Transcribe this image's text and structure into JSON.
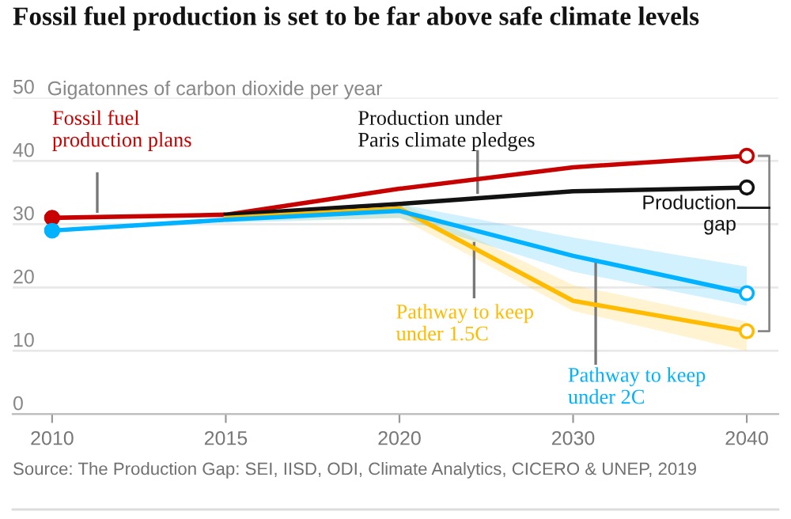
{
  "chart_data": {
    "type": "line",
    "title": "Fossil fuel production is set to be far above safe climate levels",
    "ylabel": "Gigatonnes of carbon dioxide per year",
    "categories": [
      "2010",
      "2015",
      "2020",
      "2030",
      "2040"
    ],
    "series": [
      {
        "name": "Fossil fuel\nproduction plans",
        "color": "#c70000",
        "values": [
          31,
          31.5,
          35.6,
          39,
          40.8
        ]
      },
      {
        "name": "Production under\nParis climate pledges",
        "color": "#121212",
        "values": [
          null,
          31.5,
          33.2,
          35.2,
          35.8
        ]
      },
      {
        "name": "Pathway to keep\nunder 1.5C",
        "color": "#ffbb00",
        "values": [
          null,
          31,
          32.5,
          17.9,
          13.1
        ],
        "lower": [
          null,
          30.5,
          31,
          16.3,
          10
        ],
        "upper": [
          null,
          31.5,
          33.5,
          20.4,
          14.6
        ]
      },
      {
        "name": "Pathway to keep\nunder 2C",
        "color": "#00b2ff",
        "values": [
          29,
          30.7,
          32.1,
          25,
          19.1
        ],
        "lower": [
          null,
          30.2,
          31,
          22.5,
          17.1
        ],
        "upper": [
          null,
          31.2,
          33.2,
          27.9,
          23.3
        ]
      }
    ],
    "ylim": [
      0,
      50
    ],
    "yticks": [
      0,
      10,
      20,
      30,
      40,
      50
    ],
    "grid": "y",
    "line_style": "solid",
    "annotations": [
      "Production\ngap",
      "Source: The Production Gap: SEI, IISD, ODI, Climate Analytics, CICERO & UNEP, 2019"
    ]
  }
}
